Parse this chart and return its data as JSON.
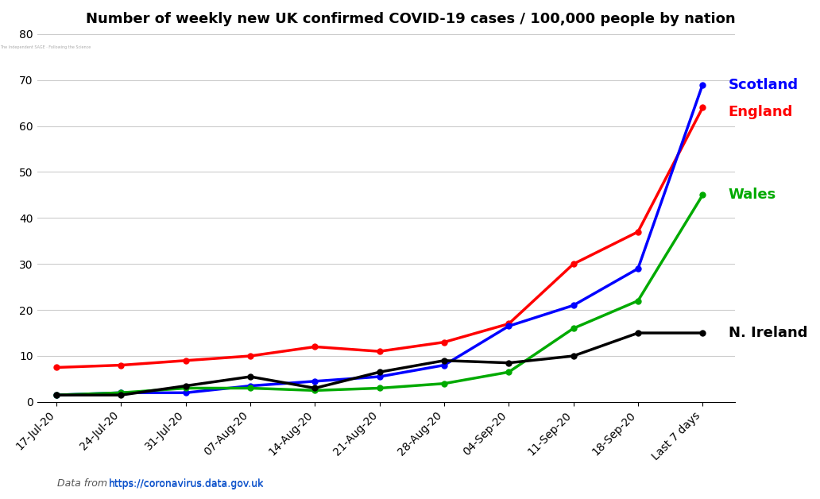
{
  "title": "Number of weekly new UK confirmed COVID-19 cases / 100,000 people by nation",
  "x_labels": [
    "17-Jul-20",
    "24-Jul-20",
    "31-Jul-20",
    "07-Aug-20",
    "14-Aug-20",
    "21-Aug-20",
    "28-Aug-20",
    "04-Sep-20",
    "11-Sep-20",
    "18-Sep-20",
    "Last 7 days"
  ],
  "series": {
    "England": {
      "color": "#ff0000",
      "values": [
        7.5,
        8.0,
        9.0,
        10.0,
        12.0,
        11.0,
        13.0,
        17.0,
        30.0,
        37.0,
        64.0
      ]
    },
    "Scotland": {
      "color": "#0000ff",
      "values": [
        1.5,
        2.0,
        2.0,
        3.5,
        4.5,
        5.5,
        8.0,
        16.5,
        21.0,
        29.0,
        69.0
      ]
    },
    "Wales": {
      "color": "#00aa00",
      "values": [
        1.5,
        2.0,
        3.0,
        3.0,
        2.5,
        3.0,
        4.0,
        6.5,
        16.0,
        22.0,
        45.0
      ]
    },
    "N. Ireland": {
      "color": "#000000",
      "values": [
        1.5,
        1.5,
        3.5,
        5.5,
        3.0,
        6.5,
        9.0,
        8.5,
        10.0,
        15.0,
        15.0
      ]
    }
  },
  "ylim": [
    0,
    80
  ],
  "yticks": [
    0,
    10,
    20,
    30,
    40,
    50,
    60,
    70,
    80
  ],
  "background_color": "#ffffff",
  "grid_color": "#cccccc",
  "label_positions": {
    "Scotland": [
      10,
      69.0
    ],
    "England": [
      10,
      64.0
    ],
    "Wales": [
      10,
      45.0
    ],
    "N. Ireland": [
      10,
      15.0
    ]
  },
  "label_colors": {
    "Scotland": "#0000ff",
    "England": "#ff0000",
    "Wales": "#00aa00",
    "N. Ireland": "#000000"
  },
  "footnote": "Data from  https://coronavirus.data.gov.uk",
  "footnote_link": "https://coronavirus.data.gov.uk"
}
